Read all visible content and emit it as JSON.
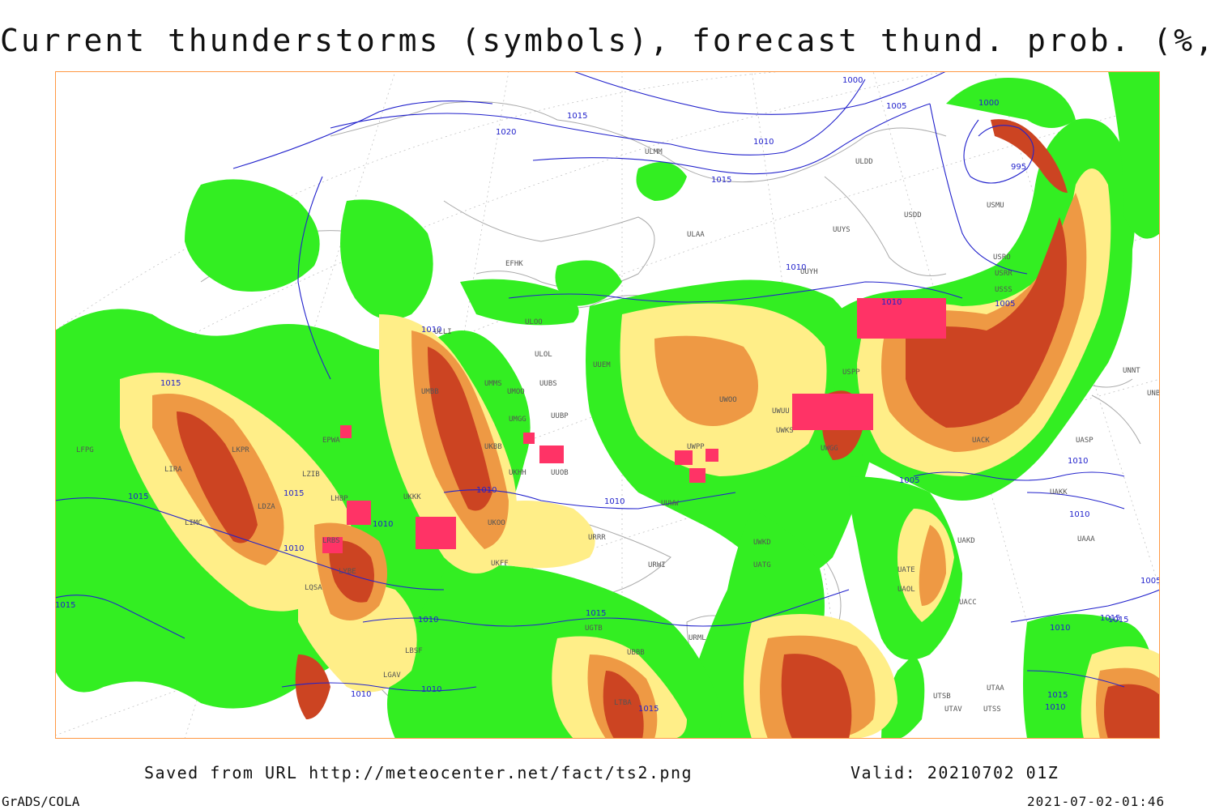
{
  "title": "Current thunderstorms (symbols), forecast thund. prob. (%, shaded)",
  "footer": {
    "saved_from": "Saved from URL http://meteocenter.net/fact/ts2.png",
    "valid": "Valid: 20210702 01Z",
    "software": "GrADS/COLA",
    "timestamp": "2021-07-02-01:46"
  },
  "colors": {
    "prob_low": "#33ee22",
    "prob_mid": "#ffee88",
    "prob_high": "#ee9944",
    "prob_very_high": "#cc4422",
    "thunderstorm_symbol": "#ff3366",
    "isobar": "#2222cc",
    "coastline": "#aaaaaa"
  },
  "isobar_labels": [
    "1000",
    "1005",
    "1015",
    "1020",
    "1010",
    "1015",
    "995",
    "1000",
    "1005",
    "1015",
    "1010",
    "1010",
    "1015",
    "1010",
    "1015",
    "1010",
    "1010",
    "1005",
    "1010",
    "1010",
    "1015",
    "1010",
    "1010",
    "1010",
    "1010",
    "1015",
    "1005",
    "1015",
    "1010",
    "1015",
    "1010",
    "1005",
    "1015",
    "1010",
    "1015"
  ],
  "stations": [
    "ULMM",
    "ULDD",
    "USDD",
    "USMU",
    "UUYS",
    "ULAA",
    "USRO",
    "EFHK",
    "ULOO",
    "UUYH",
    "ULOL",
    "UUEM",
    "UMMS",
    "UMOO",
    "UUBS",
    "UUBP",
    "UMBB",
    "UMGG",
    "UKBB",
    "ULLI",
    "UUOB",
    "EPWA",
    "LKPR",
    "LZIB",
    "LHBP",
    "LRBS",
    "LYBE",
    "LQSA",
    "LDZA",
    "LIRA",
    "LIMC",
    "LFPG",
    "UKFF",
    "URRR",
    "URWI",
    "UATG",
    "URML",
    "UGTB",
    "UBBB",
    "UTSB",
    "UTAV",
    "UTSS",
    "UTAA",
    "UAOL",
    "UACC",
    "UATE",
    "UAAA",
    "UAKK",
    "UASP",
    "UNNT",
    "UNBB",
    "UAKD",
    "UACK",
    "USPP",
    "USSS",
    "USRR",
    "UWPP",
    "UWUU",
    "UWKS",
    "UWOO",
    "UWGG",
    "UKHH",
    "UKOO",
    "UKKK",
    "LBSF",
    "LGAV",
    "LTBA",
    "UUWW",
    "UWKD"
  ]
}
